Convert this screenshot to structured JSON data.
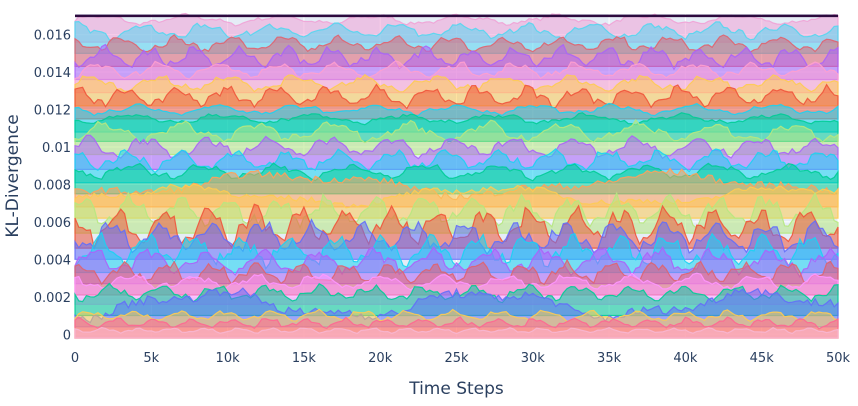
{
  "chart_data": {
    "type": "area",
    "title": "",
    "xlabel": "Time Steps",
    "ylabel": "KL-Divergence",
    "xlim": [
      0,
      50000
    ],
    "ylim": [
      -0.0002,
      0.0171
    ],
    "x_ticks": [
      0,
      5000,
      10000,
      15000,
      20000,
      25000,
      30000,
      35000,
      40000,
      45000,
      50000
    ],
    "x_tick_labels": [
      "0",
      "5k",
      "10k",
      "15k",
      "20k",
      "25k",
      "30k",
      "35k",
      "40k",
      "45k",
      "50k"
    ],
    "y_ticks": [
      0,
      0.002,
      0.004,
      0.006,
      0.008,
      0.01,
      0.012,
      0.014,
      0.016
    ],
    "y_tick_labels": [
      "0",
      "0.002",
      "0.004",
      "0.006",
      "0.008",
      "0.01",
      "0.012",
      "0.014",
      "0.016"
    ],
    "grid": true,
    "legend": "none",
    "background_color": "#e5ecf6",
    "top_line": {
      "y": 0.017,
      "color": "#2d0a3e"
    },
    "series": [
      {
        "color": "#f0a3d6",
        "base": 0.0168,
        "amp": 0.0002,
        "period": 6000
      },
      {
        "color": "#55d6f0",
        "base": 0.0162,
        "amp": 0.0003,
        "period": 4200
      },
      {
        "color": "#e0636f",
        "base": 0.0155,
        "amp": 0.0003,
        "period": 3600
      },
      {
        "color": "#ab63fa",
        "base": 0.0148,
        "amp": 0.0004,
        "period": 3000
      },
      {
        "color": "#ff9ecf",
        "base": 0.0141,
        "amp": 0.0003,
        "period": 3900
      },
      {
        "color": "#fecb52",
        "base": 0.0134,
        "amp": 0.0003,
        "period": 4500
      },
      {
        "color": "#ef553b",
        "base": 0.0127,
        "amp": 0.0004,
        "period": 3300
      },
      {
        "color": "#19d3f3",
        "base": 0.012,
        "amp": 0.0002,
        "period": 5200
      },
      {
        "color": "#00cc96",
        "base": 0.0115,
        "amp": 0.0002,
        "period": 6000
      },
      {
        "color": "#b6e880",
        "base": 0.0108,
        "amp": 0.0004,
        "period": 5000
      },
      {
        "color": "#ab63fa",
        "base": 0.01,
        "amp": 0.0004,
        "period": 4000
      },
      {
        "color": "#19d3f3",
        "base": 0.0093,
        "amp": 0.0004,
        "period": 3500
      },
      {
        "color": "#00cc96",
        "base": 0.0087,
        "amp": 0.0003,
        "period": 4800
      },
      {
        "color": "#ffa15a",
        "base": 0.008,
        "amp": 0.0005,
        "period": 25000
      },
      {
        "color": "#fecb52",
        "base": 0.0074,
        "amp": 0.0004,
        "period": 20000
      },
      {
        "color": "#b6e880",
        "base": 0.0066,
        "amp": 0.0006,
        "period": 3200
      },
      {
        "color": "#ef553b",
        "base": 0.0058,
        "amp": 0.0007,
        "period": 3000
      },
      {
        "color": "#636efa",
        "base": 0.0052,
        "amp": 0.0006,
        "period": 3300
      },
      {
        "color": "#19d3f3",
        "base": 0.0045,
        "amp": 0.0006,
        "period": 3100
      },
      {
        "color": "#ab63fa",
        "base": 0.0039,
        "amp": 0.0005,
        "period": 3700
      },
      {
        "color": "#e0636f",
        "base": 0.0033,
        "amp": 0.0004,
        "period": 2900
      },
      {
        "color": "#ff97ff",
        "base": 0.0028,
        "amp": 0.0003,
        "period": 4100
      },
      {
        "color": "#00cc96",
        "base": 0.0022,
        "amp": 0.0003,
        "period": 3400
      },
      {
        "color": "#636efa",
        "base": 0.0016,
        "amp": 0.0006,
        "period": 18000
      },
      {
        "color": "#fecb52",
        "base": 0.001,
        "amp": 0.0002,
        "period": 3000
      },
      {
        "color": "#ff6692",
        "base": 0.0006,
        "amp": 0.0002,
        "period": 2500
      },
      {
        "color": "#f7b6d2",
        "base": 0.0002,
        "amp": 0.0001,
        "period": 2200
      }
    ]
  }
}
